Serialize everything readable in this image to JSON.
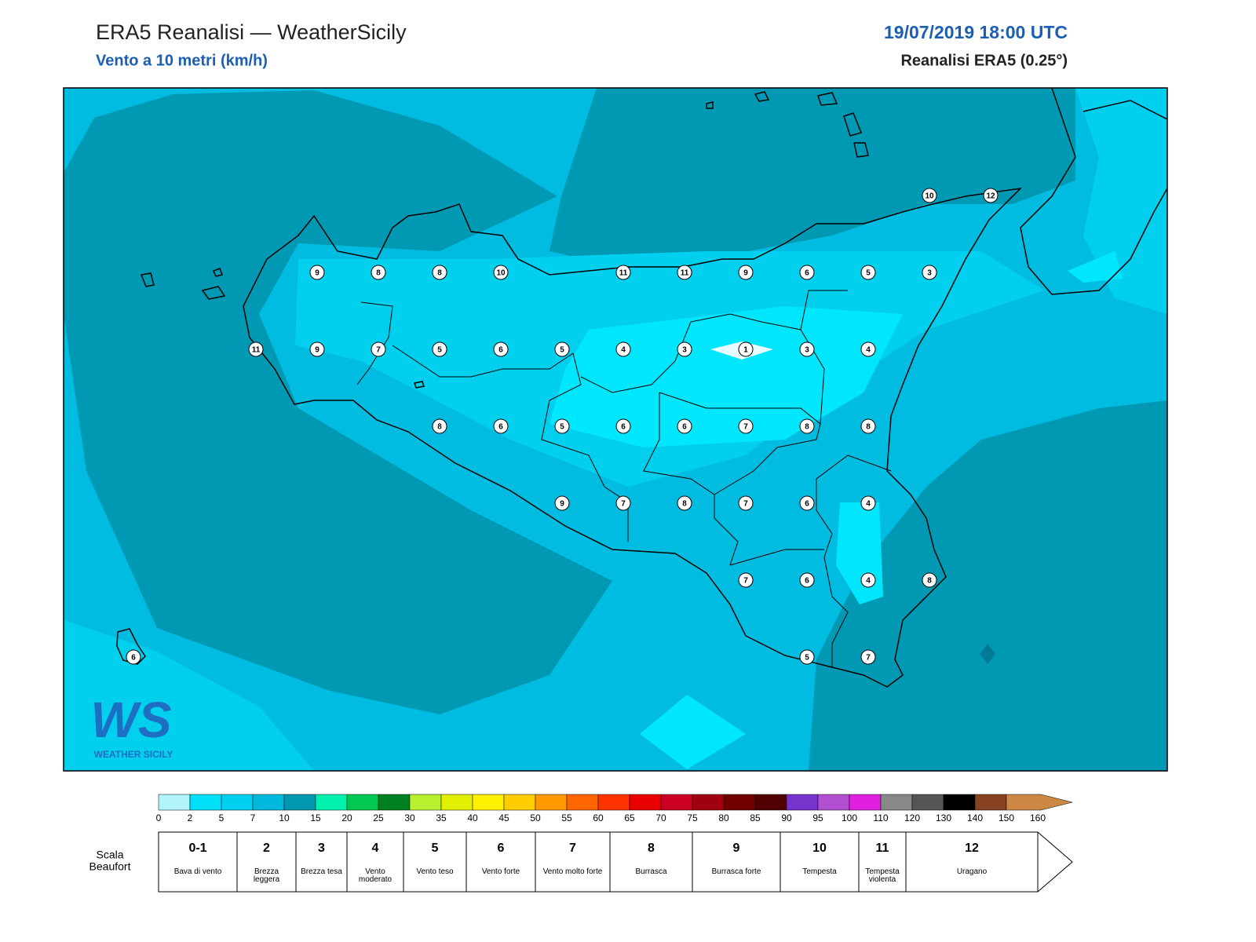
{
  "header": {
    "title": "ERA5 Reanalisi — WeatherSicily",
    "subtitle": "Vento a 10 metri (km/h)",
    "date": "19/07/2019 18:00 UTC",
    "model": "Reanalisi ERA5 (0.25°)"
  },
  "logo": {
    "mark": "WS",
    "name": "WEATHER SICILY"
  },
  "wind_grid": {
    "rows": [
      [
        null,
        null,
        null,
        null,
        null,
        null,
        null,
        null,
        null,
        null,
        null,
        null,
        null,
        10,
        12
      ],
      [
        null,
        null,
        null,
        9,
        8,
        8,
        10,
        null,
        11,
        11,
        9,
        6,
        5,
        3,
        null
      ],
      [
        null,
        null,
        11,
        9,
        7,
        5,
        6,
        5,
        4,
        3,
        1,
        3,
        4,
        null,
        null
      ],
      [
        null,
        null,
        null,
        null,
        null,
        8,
        6,
        5,
        6,
        6,
        7,
        8,
        8,
        null,
        null
      ],
      [
        null,
        null,
        null,
        null,
        null,
        null,
        null,
        9,
        7,
        8,
        7,
        6,
        4,
        null,
        null
      ],
      [
        null,
        null,
        null,
        null,
        null,
        null,
        null,
        null,
        null,
        null,
        7,
        6,
        4,
        8,
        null
      ],
      [
        6,
        null,
        null,
        null,
        null,
        null,
        null,
        null,
        null,
        null,
        null,
        5,
        7,
        null,
        null
      ]
    ]
  },
  "colorbar": {
    "ticks": [
      0,
      2,
      5,
      7,
      10,
      15,
      20,
      25,
      30,
      35,
      40,
      45,
      50,
      55,
      60,
      65,
      70,
      75,
      80,
      85,
      90,
      95,
      100,
      110,
      120,
      130,
      140,
      150,
      160
    ],
    "colors": [
      "#b3f3fc",
      "#00e0f8",
      "#00d0f0",
      "#00b8dc",
      "#0098b0",
      "#00f0b0",
      "#00c850",
      "#008020",
      "#b8f030",
      "#e0f000",
      "#fff000",
      "#ffcc00",
      "#ff9900",
      "#ff6600",
      "#ff3300",
      "#e80000",
      "#cc0022",
      "#a00010",
      "#700000",
      "#500000",
      "#7733cc",
      "#b050d0",
      "#e020e0",
      "#888888",
      "#555555",
      "#000000",
      "#884422",
      "#cc8844"
    ]
  },
  "beaufort": {
    "label": [
      "Scala",
      "Beaufort"
    ],
    "levels": [
      {
        "force": "0-1",
        "name": "Bava di vento"
      },
      {
        "force": "2",
        "name": "Brezza leggera"
      },
      {
        "force": "3",
        "name": "Brezza tesa"
      },
      {
        "force": "4",
        "name": "Vento moderato"
      },
      {
        "force": "5",
        "name": "Vento teso"
      },
      {
        "force": "6",
        "name": "Vento forte"
      },
      {
        "force": "7",
        "name": "Vento molto forte"
      },
      {
        "force": "8",
        "name": "Burrasca"
      },
      {
        "force": "9",
        "name": "Burrasca forte"
      },
      {
        "force": "10",
        "name": "Tempesta"
      },
      {
        "force": "11",
        "name": "Tempesta violenta"
      },
      {
        "force": "12",
        "name": "Uragano"
      }
    ]
  }
}
